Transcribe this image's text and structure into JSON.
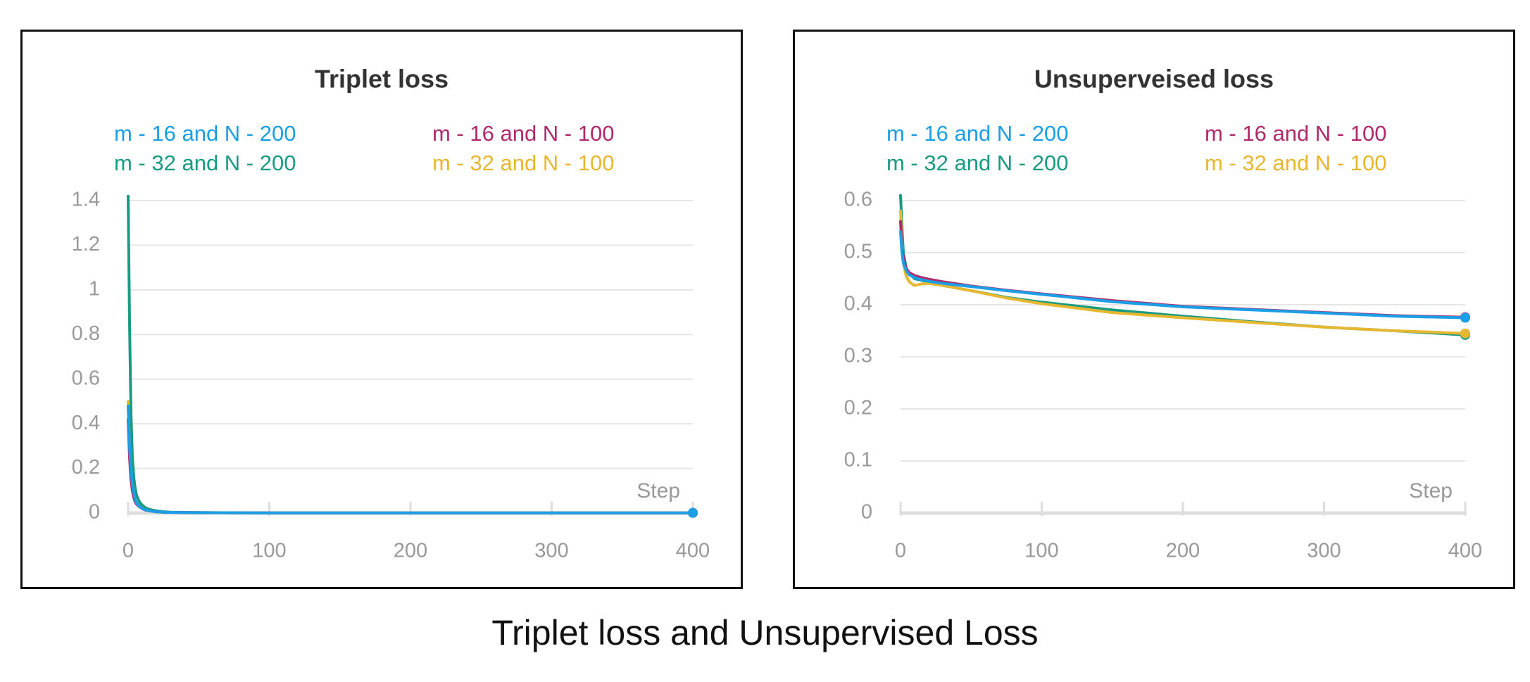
{
  "colors": {
    "m16_N200": "#1a9ee6",
    "m16_N100": "#b02a6b",
    "m32_N200": "#199a83",
    "m32_N100": "#e8b730",
    "grid": "#e6e6e6",
    "tick": "#999999"
  },
  "caption": "Triplet loss and Unsupervised Loss",
  "chart_data": [
    {
      "type": "line",
      "title": "Triplet loss",
      "xlabel": "Step",
      "ylabel": "",
      "xlim": [
        0,
        400
      ],
      "ylim": [
        0,
        1.4
      ],
      "xticks": [
        "0",
        "100",
        "200",
        "300",
        "400"
      ],
      "yticks": [
        "0",
        "0.2",
        "0.4",
        "0.6",
        "0.8",
        "1",
        "1.2",
        "1.4"
      ],
      "grid": true,
      "legend_position": "top",
      "series": [
        {
          "name": "m - 16 and N - 200",
          "color": "#1a9ee6",
          "x": [
            0,
            1,
            2,
            3,
            4,
            5,
            6,
            8,
            10,
            12,
            15,
            20,
            25,
            30,
            50,
            100,
            150,
            200,
            250,
            300,
            350,
            400
          ],
          "y": [
            0.48,
            0.3,
            0.2,
            0.13,
            0.09,
            0.06,
            0.045,
            0.03,
            0.02,
            0.015,
            0.01,
            0.006,
            0.004,
            0.003,
            0.002,
            0.001,
            0.001,
            0.001,
            0.001,
            0.001,
            0.001,
            0.001
          ]
        },
        {
          "name": "m - 16 and N - 100",
          "color": "#b02a6b",
          "x": [
            0,
            1,
            2,
            3,
            4,
            5,
            6,
            8,
            10,
            12,
            15,
            20,
            25,
            30,
            50,
            100,
            150,
            200,
            250,
            300,
            350,
            400
          ],
          "y": [
            0.42,
            0.25,
            0.15,
            0.1,
            0.07,
            0.05,
            0.04,
            0.028,
            0.02,
            0.014,
            0.01,
            0.006,
            0.004,
            0.003,
            0.002,
            0.001,
            0.001,
            0.001,
            0.001,
            0.001,
            0.001,
            0.001
          ]
        },
        {
          "name": "m - 32 and N - 200",
          "color": "#199a83",
          "x": [
            0,
            1,
            2,
            3,
            4,
            5,
            6,
            8,
            10,
            12,
            15,
            20,
            25,
            30,
            50,
            100,
            150,
            200,
            250,
            300,
            350,
            400
          ],
          "y": [
            1.42,
            0.85,
            0.45,
            0.25,
            0.16,
            0.11,
            0.08,
            0.05,
            0.035,
            0.025,
            0.016,
            0.01,
            0.006,
            0.004,
            0.002,
            0.001,
            0.001,
            0.001,
            0.001,
            0.001,
            0.001,
            0.001
          ]
        },
        {
          "name": "m - 32 and N - 100",
          "color": "#e8b730",
          "x": [
            0,
            1,
            2,
            3,
            4,
            5,
            6,
            8,
            10,
            12,
            15,
            20,
            25,
            30,
            50,
            100,
            150,
            200,
            250,
            300,
            350,
            400
          ],
          "y": [
            0.5,
            0.3,
            0.18,
            0.12,
            0.08,
            0.06,
            0.045,
            0.03,
            0.02,
            0.015,
            0.01,
            0.006,
            0.004,
            0.003,
            0.002,
            0.001,
            0.001,
            0.001,
            0.001,
            0.001,
            0.001,
            0.001
          ]
        }
      ]
    },
    {
      "type": "line",
      "title": "Unsuperveised loss",
      "xlabel": "Step",
      "ylabel": "",
      "xlim": [
        0,
        400
      ],
      "ylim": [
        0,
        0.6
      ],
      "xticks": [
        "0",
        "100",
        "200",
        "300",
        "400"
      ],
      "yticks": [
        "0",
        "0.1",
        "0.2",
        "0.3",
        "0.4",
        "0.5",
        "0.6"
      ],
      "grid": true,
      "legend_position": "top",
      "series": [
        {
          "name": "m - 16 and N - 200",
          "color": "#1a9ee6",
          "x": [
            0,
            1,
            2,
            4,
            6,
            8,
            10,
            15,
            20,
            30,
            50,
            75,
            100,
            150,
            200,
            250,
            300,
            350,
            400
          ],
          "y": [
            0.54,
            0.5,
            0.48,
            0.466,
            0.458,
            0.455,
            0.452,
            0.448,
            0.445,
            0.441,
            0.435,
            0.427,
            0.42,
            0.406,
            0.396,
            0.39,
            0.384,
            0.378,
            0.375
          ]
        },
        {
          "name": "m - 16 and N - 100",
          "color": "#b02a6b",
          "x": [
            0,
            1,
            2,
            4,
            6,
            8,
            10,
            15,
            20,
            30,
            50,
            75,
            100,
            150,
            200,
            250,
            300,
            350,
            400
          ],
          "y": [
            0.56,
            0.51,
            0.49,
            0.47,
            0.462,
            0.459,
            0.456,
            0.452,
            0.449,
            0.444,
            0.436,
            0.428,
            0.421,
            0.408,
            0.397,
            0.391,
            0.385,
            0.379,
            0.376
          ]
        },
        {
          "name": "m - 32 and N - 200",
          "color": "#199a83",
          "x": [
            0,
            1,
            2,
            4,
            6,
            8,
            10,
            15,
            20,
            30,
            50,
            75,
            100,
            150,
            200,
            250,
            300,
            350,
            400
          ],
          "y": [
            0.61,
            0.55,
            0.5,
            0.47,
            0.46,
            0.455,
            0.45,
            0.447,
            0.443,
            0.437,
            0.427,
            0.414,
            0.405,
            0.39,
            0.378,
            0.367,
            0.357,
            0.35,
            0.342
          ]
        },
        {
          "name": "m - 32 and N - 100",
          "color": "#e8b730",
          "x": [
            0,
            1,
            2,
            4,
            6,
            8,
            10,
            15,
            20,
            30,
            50,
            75,
            100,
            150,
            200,
            250,
            300,
            350,
            400
          ],
          "y": [
            0.58,
            0.52,
            0.48,
            0.455,
            0.445,
            0.44,
            0.437,
            0.44,
            0.441,
            0.437,
            0.427,
            0.413,
            0.402,
            0.385,
            0.375,
            0.366,
            0.357,
            0.35,
            0.345
          ]
        }
      ]
    }
  ]
}
